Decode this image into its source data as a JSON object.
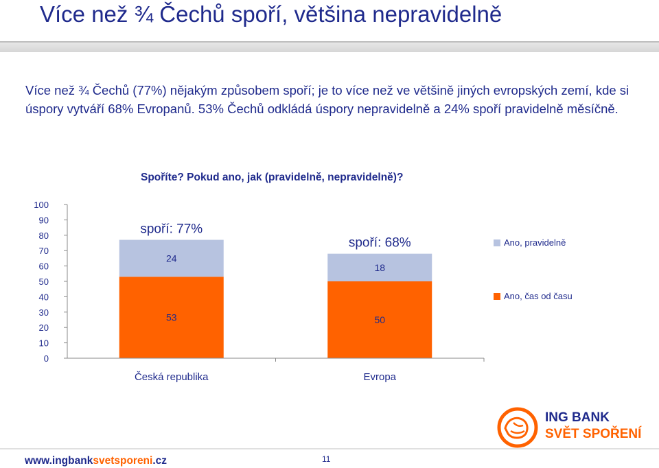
{
  "slide": {
    "title": "Více než ¾ Čechů spoří, většina nepravidelně",
    "intro": "Více než ¾ Čechů (77%) nějakým způsobem spoří; je to více než ve většině jiných evropských zemí, kde si úspory vytváří 68% Evropanů. 53% Čechů odkládá úspory nepravidelně a 24% spoří pravidelně měsíčně.",
    "footer_url_prefix": "www.ingbank",
    "footer_url_accent": "svetsporeni",
    "footer_url_suffix": ".cz",
    "page_number": "11",
    "logo_line1": "ING BANK",
    "logo_line2": "SVĚT SPOŘENÍ"
  },
  "colors": {
    "navy": "#1f2a8c",
    "orange": "#ff6200",
    "light_blue": "#b7c3e0"
  },
  "chart_data": {
    "type": "bar",
    "stacked": true,
    "title": "Spoříte? Pokud ano, jak (pravidelně, nepravidelně)?",
    "categories": [
      "Česká republika",
      "Evropa"
    ],
    "series": [
      {
        "name": "Ano, čas od času",
        "color": "#ff6200",
        "values": [
          53,
          50
        ]
      },
      {
        "name": "Ano, pravidelně",
        "color": "#b7c3e0",
        "values": [
          24,
          18
        ]
      }
    ],
    "totals_labels": [
      "spoří: 77%",
      "spoří: 68%"
    ],
    "ylim": [
      0,
      100
    ],
    "yticks": [
      0,
      10,
      20,
      30,
      40,
      50,
      60,
      70,
      80,
      90,
      100
    ],
    "xlabel": "",
    "ylabel": "",
    "grid": false,
    "legend_position": "right"
  }
}
